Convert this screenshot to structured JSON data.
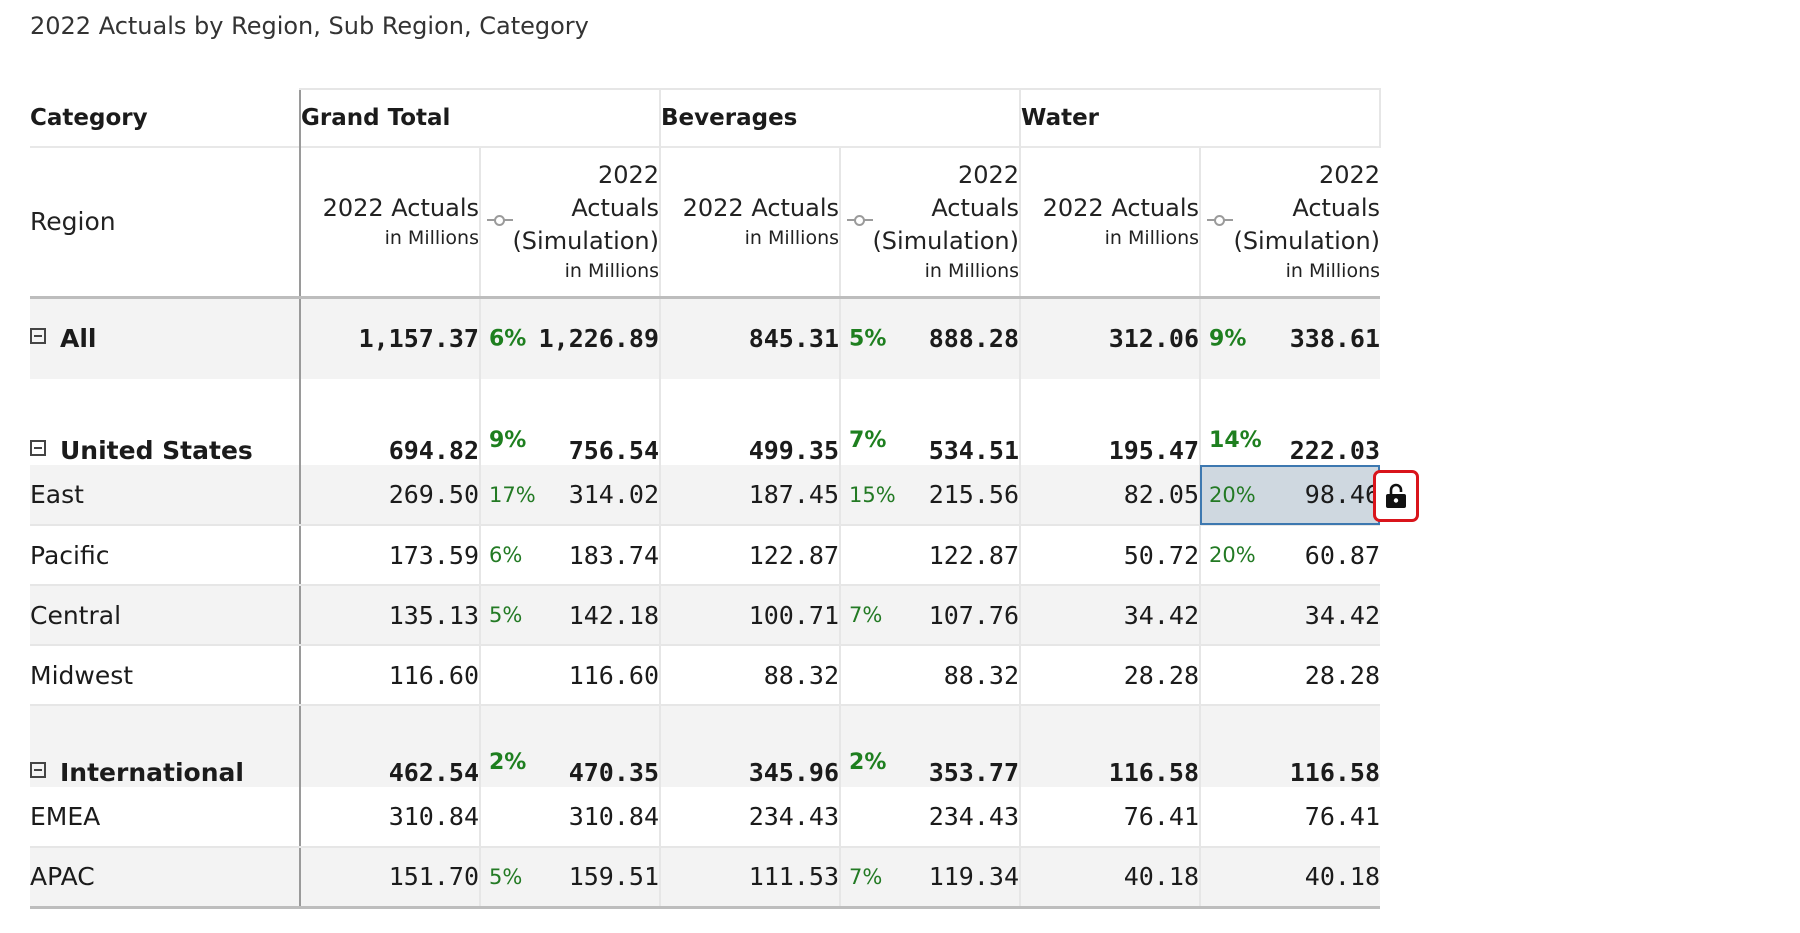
{
  "title": "2022 Actuals by Region, Sub Region, Category",
  "header": {
    "category_label": "Category",
    "region_label": "Region",
    "groups": [
      "Grand Total",
      "Beverages",
      "Water"
    ],
    "measure_actuals": "2022 Actuals",
    "measure_sim_line1": "2022",
    "measure_sim_line2": "Actuals",
    "measure_sim_line3": "(Simulation)",
    "unit": "in Millions"
  },
  "rows": [
    {
      "label": "All",
      "values": [
        "1,157.37",
        "1,226.89",
        "845.31",
        "888.28",
        "312.06",
        "338.61"
      ],
      "pcts": [
        "6%",
        "5%",
        "9%"
      ]
    },
    {
      "label": "United States",
      "values": [
        "694.82",
        "756.54",
        "499.35",
        "534.51",
        "195.47",
        "222.03"
      ],
      "pcts": [
        "9%",
        "7%",
        "14%"
      ]
    },
    {
      "label": "East",
      "values": [
        "269.50",
        "314.02",
        "187.45",
        "215.56",
        "82.05",
        "98.46"
      ],
      "pcts": [
        "17%",
        "15%",
        "20%"
      ]
    },
    {
      "label": "Pacific",
      "values": [
        "173.59",
        "183.74",
        "122.87",
        "122.87",
        "50.72",
        "60.87"
      ],
      "pcts": [
        "6%",
        "",
        "20%"
      ]
    },
    {
      "label": "Central",
      "values": [
        "135.13",
        "142.18",
        "100.71",
        "107.76",
        "34.42",
        "34.42"
      ],
      "pcts": [
        "5%",
        "7%",
        ""
      ]
    },
    {
      "label": "Midwest",
      "values": [
        "116.60",
        "116.60",
        "88.32",
        "88.32",
        "28.28",
        "28.28"
      ],
      "pcts": [
        "",
        "",
        ""
      ]
    },
    {
      "label": "International",
      "values": [
        "462.54",
        "470.35",
        "345.96",
        "353.77",
        "116.58",
        "116.58"
      ],
      "pcts": [
        "2%",
        "2%",
        ""
      ]
    },
    {
      "label": "EMEA",
      "values": [
        "310.84",
        "310.84",
        "234.43",
        "234.43",
        "76.41",
        "76.41"
      ],
      "pcts": [
        "",
        "",
        ""
      ]
    },
    {
      "label": "APAC",
      "values": [
        "151.70",
        "159.51",
        "111.53",
        "119.34",
        "40.18",
        "40.18"
      ],
      "pcts": [
        "5%",
        "7%",
        ""
      ]
    }
  ],
  "icons": {
    "lock": "lock-open-icon",
    "collapse": "minus-square-icon",
    "simulation": "slider-icon"
  },
  "colors": {
    "positive": "#237a24",
    "selection": "#cfd8e0",
    "lock_highlight": "#d9141b"
  }
}
